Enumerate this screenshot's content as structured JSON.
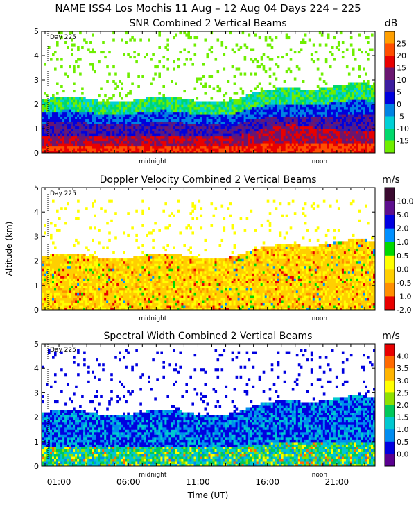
{
  "figure": {
    "title": "NAME ISS4 Los Mochis  11 Aug – 12 Aug 04 Days 224 – 225",
    "xlabel": "Time (UT)",
    "ylabel": "Altitude (km)",
    "x_ticks": [
      "01:00",
      "06:00",
      "11:00",
      "16:00",
      "21:00"
    ],
    "markers": {
      "day": "Day 225",
      "midnight": "midnight",
      "noon": "noon"
    }
  },
  "chart_data": [
    {
      "type": "heatmap",
      "title": "SNR Combined 2 Vertical Beams",
      "unit": "dB",
      "xlim": [
        0,
        24
      ],
      "ylim": [
        0,
        5
      ],
      "y_ticks": [
        0,
        1,
        2,
        3,
        4,
        5
      ],
      "colorbar": {
        "labels": [
          "25",
          "20",
          "15",
          "10",
          "5",
          "0",
          "-5",
          "-10",
          "-15"
        ],
        "colors": [
          "#ff9f00",
          "#ff4e00",
          "#e80000",
          "#6a1670",
          "#3c1da0",
          "#0000dd",
          "#0083e3",
          "#00d0d6",
          "#00d86b",
          "#6fee00"
        ]
      }
    },
    {
      "type": "heatmap",
      "title": "Doppler Velocity Combined 2 Vertical Beams",
      "unit": "m/s",
      "xlim": [
        0,
        24
      ],
      "ylim": [
        0,
        5
      ],
      "y_ticks": [
        0,
        1,
        2,
        3,
        4,
        5
      ],
      "colorbar": {
        "labels": [
          "10.0",
          "5.0",
          "2.0",
          "1.0",
          "0.5",
          "0.0",
          "-0.5",
          "-1.0",
          "-2.0"
        ],
        "colors": [
          "#3a0a30",
          "#5d0f8e",
          "#0000e0",
          "#0090ff",
          "#00d800",
          "#ffff00",
          "#ffcf00",
          "#ff8f00",
          "#e80000"
        ]
      }
    },
    {
      "type": "heatmap",
      "title": "Spectral Width Combined 2 Vertical Beams",
      "unit": "m/s",
      "xlim": [
        0,
        24
      ],
      "ylim": [
        0,
        5
      ],
      "y_ticks": [
        0,
        1,
        2,
        3,
        4,
        5
      ],
      "colorbar": {
        "labels": [
          "4.0",
          "3.5",
          "3.0",
          "2.5",
          "2.0",
          "1.5",
          "1.0",
          "0.5",
          "0.0"
        ],
        "colors": [
          "#e80000",
          "#ff6a00",
          "#ffb400",
          "#ffff00",
          "#8ee000",
          "#00c85a",
          "#00c8d0",
          "#008cf0",
          "#0000e0",
          "#5a0090"
        ]
      }
    }
  ]
}
